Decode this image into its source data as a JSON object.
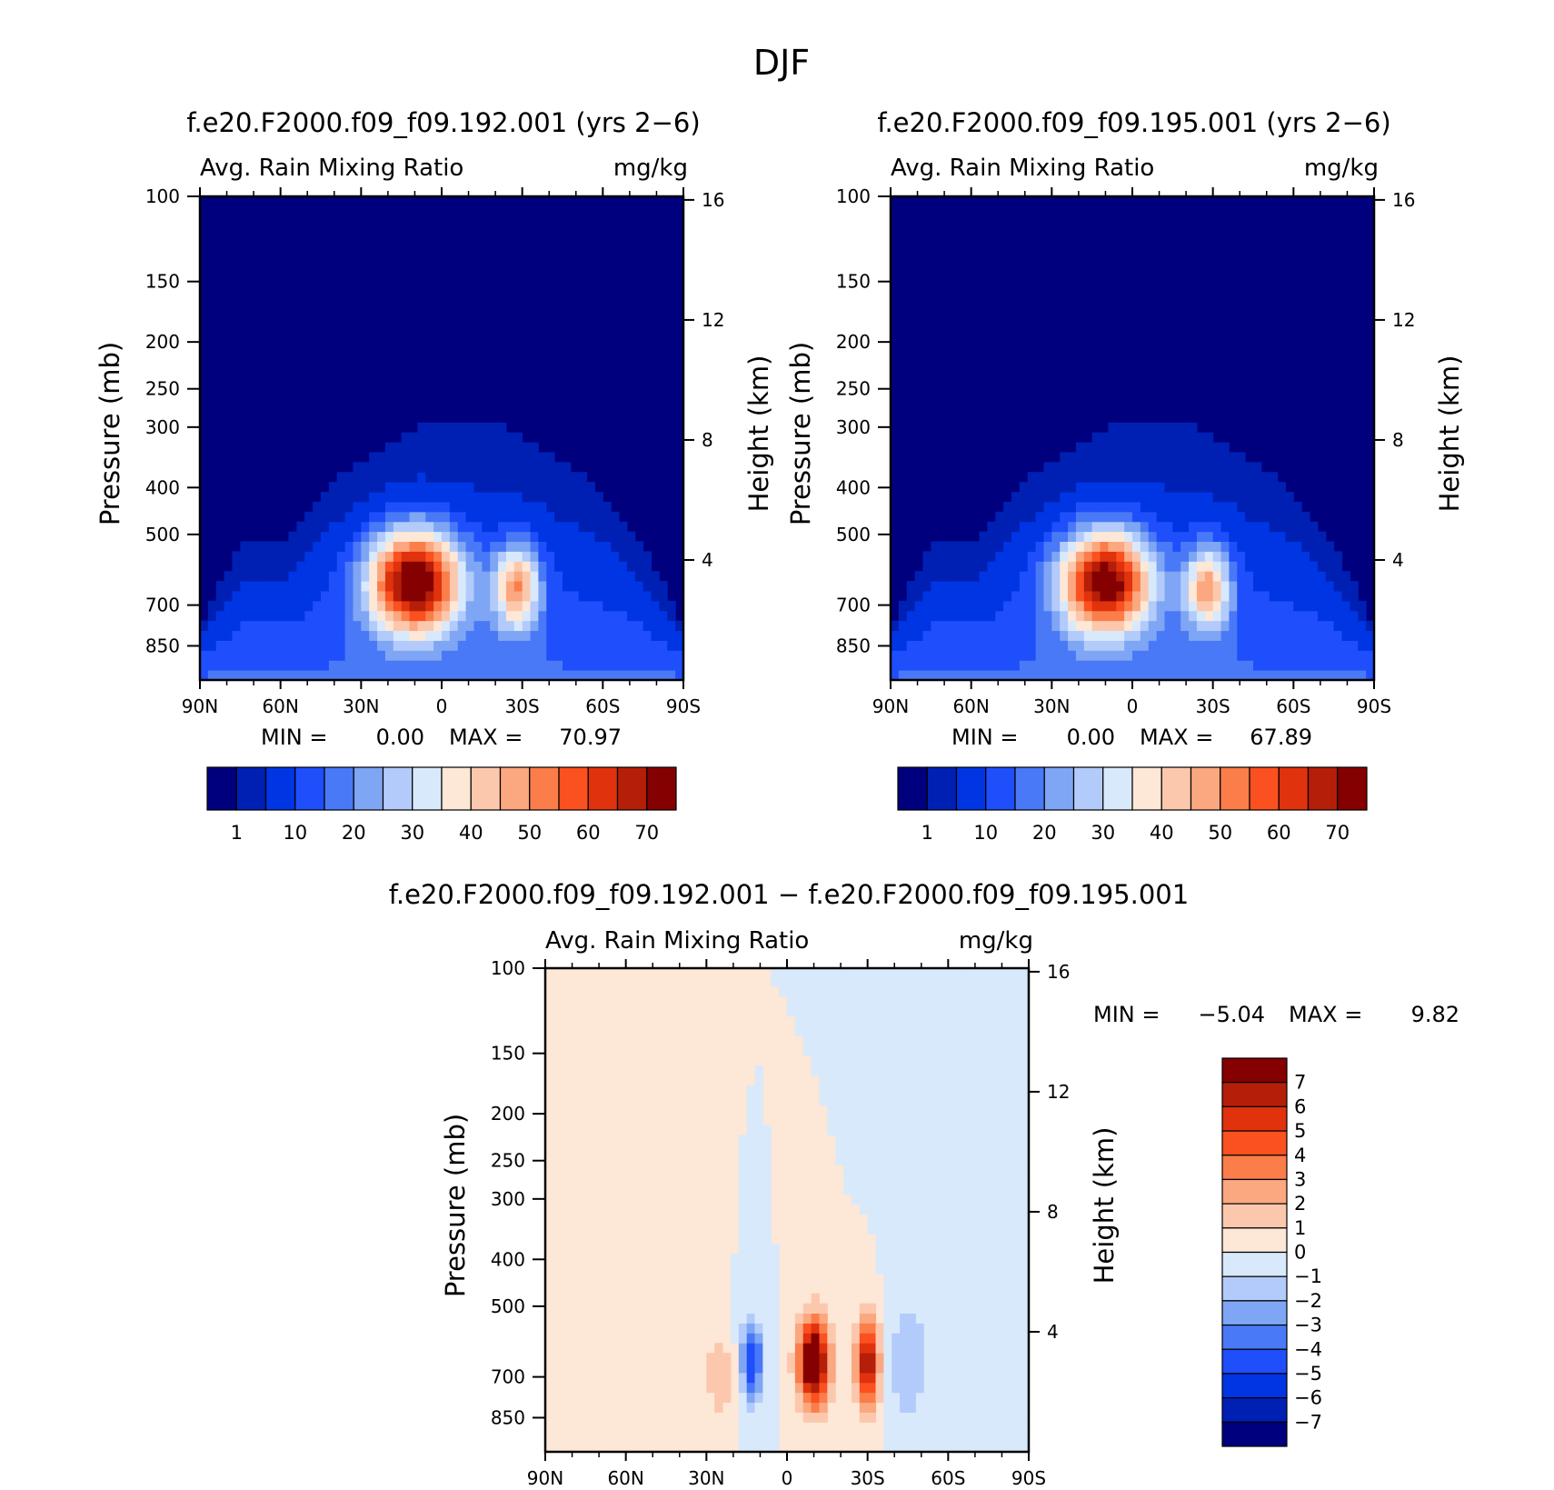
{
  "figure_title": "DJF",
  "colors": {
    "seq": [
      "#00007e",
      "#0020b4",
      "#0035e3",
      "#1f4efb",
      "#4a79f7",
      "#7fa6f4",
      "#b2cbfa",
      "#d8e9fc",
      "#fde7d6",
      "#fcc8ad",
      "#fba77f",
      "#fb7d4a",
      "#fb501f",
      "#e0320d",
      "#b51e09",
      "#850000"
    ],
    "diff": [
      "#00007e",
      "#0020b4",
      "#0035e3",
      "#1f4efb",
      "#4a79f7",
      "#7fa6f4",
      "#b2cbfa",
      "#d8e9fc",
      "#fde7d6",
      "#fcc8ad",
      "#fba77f",
      "#fb7d4a",
      "#fb501f",
      "#e0320d",
      "#b51e09",
      "#850000"
    ]
  },
  "chart_data": [
    {
      "type": "heatmap",
      "title": "f.e20.F2000.f09_f09.192.001 (yrs 2−6)",
      "subtitle_left": "Avg. Rain Mixing Ratio",
      "subtitle_right": "mg/kg",
      "ylabel": "Pressure (mb)",
      "ylabel_right": "Height (km)",
      "x_ticks": [
        "90N",
        "60N",
        "30N",
        "0",
        "30S",
        "60S",
        "90S"
      ],
      "x_range": [
        -90,
        90
      ],
      "y_ticks": [
        100,
        150,
        200,
        250,
        300,
        400,
        500,
        700,
        850
      ],
      "y_range": [
        100,
        1000
      ],
      "y_scale": "log",
      "right_ticks": [
        16,
        12,
        8,
        4
      ],
      "min_label": "MIN =",
      "min_value": "0.00",
      "max_label": "MAX =",
      "max_value": "70.97",
      "colorbar_labels": [
        "1",
        "10",
        "20",
        "30",
        "40",
        "50",
        "60",
        "70"
      ],
      "colorbar_position": "bottom",
      "top_of_field_km": [
        2,
        5,
        5,
        7,
        8,
        9,
        9,
        9,
        8,
        7,
        5,
        2
      ],
      "blobs": [
        {
          "lat": 10,
          "km": 3.3,
          "amp": 70,
          "sx": 12,
          "sy": 1.2
        },
        {
          "lat": -28,
          "km": 3.1,
          "amp": 40,
          "sx": 6,
          "sy": 1.0
        }
      ]
    },
    {
      "type": "heatmap",
      "title": "f.e20.F2000.f09_f09.195.001 (yrs 2−6)",
      "subtitle_left": "Avg. Rain Mixing Ratio",
      "subtitle_right": "mg/kg",
      "ylabel": "Pressure (mb)",
      "ylabel_right": "Height (km)",
      "x_ticks": [
        "90N",
        "60N",
        "30N",
        "0",
        "30S",
        "60S",
        "90S"
      ],
      "x_range": [
        -90,
        90
      ],
      "y_ticks": [
        100,
        150,
        200,
        250,
        300,
        400,
        500,
        700,
        850
      ],
      "y_range": [
        100,
        1000
      ],
      "y_scale": "log",
      "right_ticks": [
        16,
        12,
        8,
        4
      ],
      "min_label": "MIN =",
      "min_value": "0.00",
      "max_label": "MAX =",
      "max_value": "67.89",
      "colorbar_labels": [
        "1",
        "10",
        "20",
        "30",
        "40",
        "50",
        "60",
        "70"
      ],
      "colorbar_position": "bottom",
      "top_of_field_km": [
        2,
        5,
        5,
        7,
        8,
        9,
        9,
        9,
        8,
        7,
        5,
        2
      ],
      "blobs": [
        {
          "lat": 10,
          "km": 3.3,
          "amp": 67,
          "sx": 12,
          "sy": 1.2
        },
        {
          "lat": -28,
          "km": 3.1,
          "amp": 38,
          "sx": 6,
          "sy": 1.0
        }
      ]
    },
    {
      "type": "heatmap",
      "title": "f.e20.F2000.f09_f09.192.001 − f.e20.F2000.f09_f09.195.001",
      "subtitle_left": "Avg. Rain Mixing Ratio",
      "subtitle_right": "mg/kg",
      "ylabel": "Pressure (mb)",
      "ylabel_right": "Height (km)",
      "x_ticks": [
        "90N",
        "60N",
        "30N",
        "0",
        "30S",
        "60S",
        "90S"
      ],
      "x_range": [
        -90,
        90
      ],
      "y_ticks": [
        100,
        150,
        200,
        250,
        300,
        400,
        500,
        700,
        850
      ],
      "y_range": [
        100,
        1000
      ],
      "y_scale": "log",
      "right_ticks": [
        16,
        12,
        8,
        4
      ],
      "min_label": "MIN =",
      "min_value": "−5.04",
      "max_label": "MAX =",
      "max_value": "9.82",
      "colorbar_labels": [
        "7",
        "6",
        "5",
        "4",
        "3",
        "2",
        "1",
        "0",
        "−1",
        "−2",
        "−3",
        "−4",
        "−5",
        "−6",
        "−7"
      ],
      "colorbar_position": "right",
      "blobs": [
        {
          "lat": -10,
          "km": 3.0,
          "amp": 9.8,
          "sx": 4,
          "sy": 1.0
        },
        {
          "lat": -30,
          "km": 3.0,
          "amp": 7.5,
          "sx": 3,
          "sy": 1.0
        },
        {
          "lat": 13,
          "km": 3.0,
          "amp": -5.0,
          "sx": 3,
          "sy": 0.9
        },
        {
          "lat": -45,
          "km": 3.0,
          "amp": -2.0,
          "sx": 5,
          "sy": 1.5
        },
        {
          "lat": 25,
          "km": 2.5,
          "amp": 1.8,
          "sx": 4,
          "sy": 1.0
        }
      ]
    }
  ]
}
